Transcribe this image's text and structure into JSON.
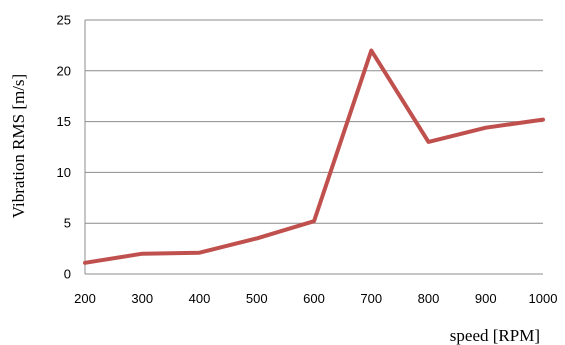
{
  "chart_data": {
    "type": "line",
    "title": "",
    "xlabel": "speed [RPM]",
    "ylabel": "Vibration RMS [m/s]",
    "xlim": [
      200,
      1000
    ],
    "ylim": [
      0,
      25
    ],
    "x_ticks": [
      "200",
      "300",
      "400",
      "500",
      "600",
      "700",
      "800",
      "900",
      "1000"
    ],
    "y_ticks": [
      "0",
      "5",
      "10",
      "15",
      "20",
      "25"
    ],
    "grid": "horizontal",
    "legend": "none",
    "series": [
      {
        "color": "#c0504d",
        "x": [
          200,
          300,
          400,
          500,
          600,
          700,
          800,
          900,
          1000
        ],
        "y": [
          1.1,
          2.0,
          2.1,
          3.5,
          5.2,
          22.0,
          13.0,
          14.4,
          15.2
        ]
      }
    ]
  }
}
